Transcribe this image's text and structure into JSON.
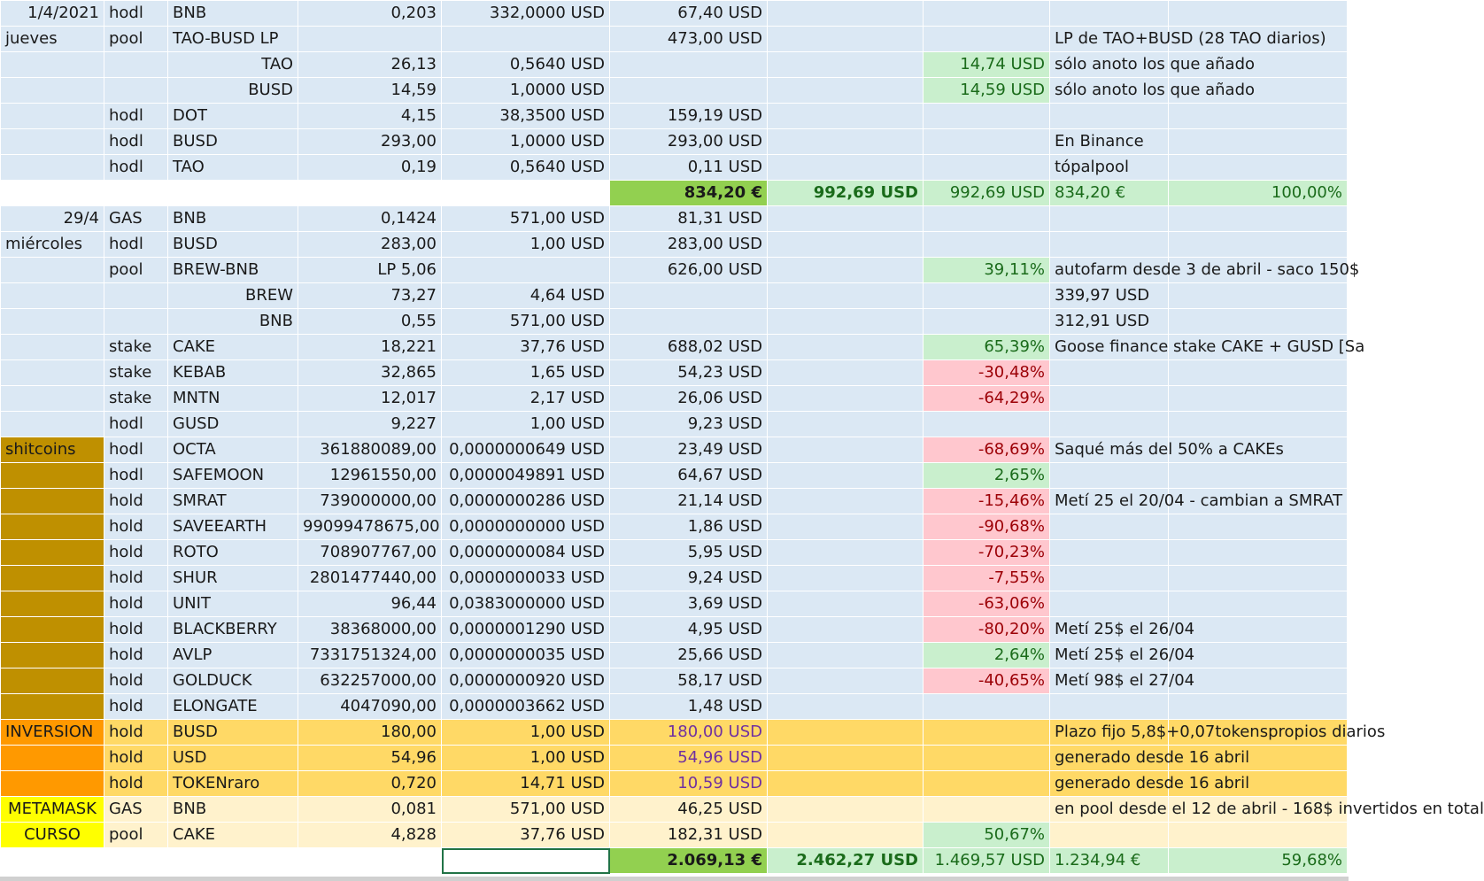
{
  "colors": {
    "blue": "#dbe8f4",
    "green_total": "#92d050",
    "light_green": "#c9efcd",
    "pink": "#ffc7ce",
    "gold": "#bf9000",
    "orange": "#ff9900",
    "yellow": "#ffff00",
    "amber": "#ffd966",
    "cream": "#fff2cc"
  },
  "rows": [
    {
      "date": "1/4/2021",
      "type": "hodl",
      "asset": "BNB",
      "qty": "0,203",
      "price": "332,0000 USD",
      "value": "67,40 USD",
      "g": "",
      "h": "",
      "note": "",
      "k": ""
    },
    {
      "date": "jueves",
      "type": "pool",
      "asset": "TAO-BUSD LP",
      "qty": "",
      "price": "",
      "value": "473,00 USD",
      "g": "",
      "h": "",
      "note": "LP de TAO+BUSD  (28 TAO diarios)",
      "k": ""
    },
    {
      "date": "",
      "type": "",
      "asset": "TAO",
      "qty": "26,13",
      "price": "0,5640 USD",
      "value": "",
      "g": "",
      "h": "14,74 USD",
      "note": "sólo anoto los que añado",
      "k": ""
    },
    {
      "date": "",
      "type": "",
      "asset": "BUSD",
      "qty": "14,59",
      "price": "1,0000 USD",
      "value": "",
      "g": "",
      "h": "14,59 USD",
      "note": "sólo anoto los que añado",
      "k": ""
    },
    {
      "date": "",
      "type": "hodl",
      "asset": "DOT",
      "qty": "4,15",
      "price": "38,3500 USD",
      "value": "159,19 USD",
      "g": "",
      "h": "",
      "note": "",
      "k": ""
    },
    {
      "date": "",
      "type": "hodl",
      "asset": "BUSD",
      "qty": "293,00",
      "price": "1,0000 USD",
      "value": "293,00 USD",
      "g": "",
      "h": "",
      "note": "En Binance",
      "k": ""
    },
    {
      "date": "",
      "type": "hodl",
      "asset": "TAO",
      "qty": "0,19",
      "price": "0,5640 USD",
      "value": "0,11 USD",
      "g": "",
      "h": "",
      "note": "tópalpool",
      "k": ""
    },
    {
      "date": "",
      "type": "",
      "asset": "",
      "qty": "",
      "price": "",
      "value": "834,20 €",
      "g": "992,69 USD",
      "h": "992,69 USD",
      "note": "834,20 €",
      "k": "100,00%"
    },
    {
      "date": "29/4",
      "type": "GAS",
      "asset": "BNB",
      "qty": "0,1424",
      "price": "571,00 USD",
      "value": "81,31 USD",
      "g": "",
      "h": "",
      "note": "",
      "k": ""
    },
    {
      "date": "miércoles",
      "type": "hodl",
      "asset": "BUSD",
      "qty": "283,00",
      "price": "1,00 USD",
      "value": "283,00 USD",
      "g": "",
      "h": "",
      "note": "",
      "k": ""
    },
    {
      "date": "",
      "type": "pool",
      "asset": "BREW-BNB",
      "qty": "LP 5,06",
      "price": "",
      "value": "626,00 USD",
      "g": "",
      "h": "39,11%",
      "note": "autofarm desde 3 de abril - saco 150$",
      "k": ""
    },
    {
      "date": "",
      "type": "",
      "asset": "BREW",
      "qty": "73,27",
      "price": "4,64 USD",
      "value": "",
      "g": "",
      "h": "",
      "note": "339,97 USD",
      "k": ""
    },
    {
      "date": "",
      "type": "",
      "asset": "BNB",
      "qty": "0,55",
      "price": "571,00 USD",
      "value": "",
      "g": "",
      "h": "",
      "note": "312,91 USD",
      "k": ""
    },
    {
      "date": "",
      "type": "stake",
      "asset": "CAKE",
      "qty": "18,221",
      "price": "37,76 USD",
      "value": "688,02 USD",
      "g": "",
      "h": "65,39%",
      "note": "Goose finance stake CAKE + GUSD [Sa",
      "k": ""
    },
    {
      "date": "",
      "type": "stake",
      "asset": "KEBAB",
      "qty": "32,865",
      "price": "1,65 USD",
      "value": "54,23 USD",
      "g": "",
      "h": "-30,48%",
      "note": "",
      "k": ""
    },
    {
      "date": "",
      "type": "stake",
      "asset": "MNTN",
      "qty": "12,017",
      "price": "2,17 USD",
      "value": "26,06 USD",
      "g": "",
      "h": "-64,29%",
      "note": "",
      "k": ""
    },
    {
      "date": "",
      "type": "hodl",
      "asset": "GUSD",
      "qty": "9,227",
      "price": "1,00 USD",
      "value": "9,23 USD",
      "g": "",
      "h": "",
      "note": "",
      "k": ""
    },
    {
      "date": "shitcoins",
      "type": "hodl",
      "asset": "OCTA",
      "qty": "361880089,00",
      "price": "0,0000000649 USD",
      "value": "23,49 USD",
      "g": "",
      "h": "-68,69%",
      "note": "Saqué más del 50% a CAKEs",
      "k": ""
    },
    {
      "date": "",
      "type": "hodl",
      "asset": "SAFEMOON",
      "qty": "12961550,00",
      "price": "0,0000049891 USD",
      "value": "64,67 USD",
      "g": "",
      "h": "2,65%",
      "note": "",
      "k": ""
    },
    {
      "date": "",
      "type": "hold",
      "asset": "SMRAT",
      "qty": "739000000,00",
      "price": "0,0000000286 USD",
      "value": "21,14 USD",
      "g": "",
      "h": "-15,46%",
      "note": "Metí 25 el 20/04 - cambian a SMRAT",
      "k": ""
    },
    {
      "date": "",
      "type": "hold",
      "asset": "SAVEEARTH",
      "qty": "99099478675,00",
      "price": "0,0000000000 USD",
      "value": "1,86 USD",
      "g": "",
      "h": "-90,68%",
      "note": "",
      "k": ""
    },
    {
      "date": "",
      "type": "hold",
      "asset": "ROTO",
      "qty": "708907767,00",
      "price": "0,0000000084 USD",
      "value": "5,95 USD",
      "g": "",
      "h": "-70,23%",
      "note": "",
      "k": ""
    },
    {
      "date": "",
      "type": "hold",
      "asset": "SHUR",
      "qty": "2801477440,00",
      "price": "0,0000000033 USD",
      "value": "9,24 USD",
      "g": "",
      "h": "-7,55%",
      "note": "",
      "k": ""
    },
    {
      "date": "",
      "type": "hold",
      "asset": "UNIT",
      "qty": "96,44",
      "price": "0,0383000000 USD",
      "value": "3,69 USD",
      "g": "",
      "h": "-63,06%",
      "note": "",
      "k": ""
    },
    {
      "date": "",
      "type": "hold",
      "asset": "BLACKBERRY",
      "qty": "38368000,00",
      "price": "0,0000001290 USD",
      "value": "4,95 USD",
      "g": "",
      "h": "-80,20%",
      "note": "Metí 25$ el 26/04",
      "k": ""
    },
    {
      "date": "",
      "type": "hold",
      "asset": "AVLP",
      "qty": "7331751324,00",
      "price": "0,0000000035 USD",
      "value": "25,66 USD",
      "g": "",
      "h": "2,64%",
      "note": "Metí 25$ el 26/04",
      "k": ""
    },
    {
      "date": "",
      "type": "hold",
      "asset": "GOLDUCK",
      "qty": "632257000,00",
      "price": "0,0000000920 USD",
      "value": "58,17 USD",
      "g": "",
      "h": "-40,65%",
      "note": "Metí 98$ el 27/04",
      "k": ""
    },
    {
      "date": "",
      "type": "hold",
      "asset": "ELONGATE",
      "qty": "4047090,00",
      "price": "0,0000003662 USD",
      "value": "1,48 USD",
      "g": "",
      "h": "",
      "note": "",
      "k": ""
    },
    {
      "date": "INVERSION",
      "type": "hold",
      "asset": "BUSD",
      "qty": "180,00",
      "price": "1,00 USD",
      "value": "180,00 USD",
      "g": "",
      "h": "",
      "note": "Plazo fijo 5,8$+0,07tokenspropios diarios",
      "k": ""
    },
    {
      "date": "",
      "type": "hold",
      "asset": "USD",
      "qty": "54,96",
      "price": "1,00 USD",
      "value": "54,96 USD",
      "g": "",
      "h": "",
      "note": "generado desde 16 abril",
      "k": ""
    },
    {
      "date": "",
      "type": "hold",
      "asset": "TOKENraro",
      "qty": "0,720",
      "price": "14,71 USD",
      "value": "10,59 USD",
      "g": "",
      "h": "",
      "note": "generado desde 16 abril",
      "k": ""
    },
    {
      "date": "METAMASK",
      "type": "GAS",
      "asset": "BNB",
      "qty": "0,081",
      "price": "571,00 USD",
      "value": "46,25 USD",
      "g": "",
      "h": "",
      "note": "en pool desde el 12 de abril - 168$ invertidos en total",
      "k": ""
    },
    {
      "date": "CURSO",
      "type": "pool",
      "asset": "CAKE",
      "qty": "4,828",
      "price": "37,76 USD",
      "value": "182,31 USD",
      "g": "",
      "h": "50,67%",
      "note": "",
      "k": ""
    },
    {
      "date": "",
      "type": "",
      "asset": "",
      "qty": "",
      "price": "",
      "value": "2.069,13 €",
      "g": "2.462,27 USD",
      "h": "1.469,57 USD",
      "note": "1.234,94 €",
      "k": "59,68%"
    }
  ]
}
